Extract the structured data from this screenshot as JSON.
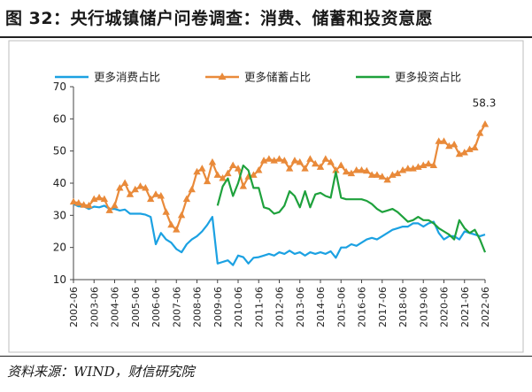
{
  "figure": {
    "title": "图 32：央行城镇储户问卷调查：消费、储蓄和投资意愿",
    "source": "资料来源：WIND，财信研究院"
  },
  "colors": {
    "consumption": "#1BA1E2",
    "savings": "#E98A3A",
    "investment": "#1EA13C"
  },
  "chart_data": {
    "type": "line",
    "title": "",
    "xlabel": "",
    "ylabel": "",
    "ylim": [
      10,
      70
    ],
    "yticks": [
      "10",
      "20",
      "30",
      "40",
      "50",
      "60",
      "70"
    ],
    "xlim": [
      "2002-06",
      "2022-06"
    ],
    "xticks": [
      "2002-06",
      "2003-06",
      "2004-06",
      "2005-06",
      "2006-06",
      "2007-06",
      "2008-06",
      "2009-06",
      "2010-06",
      "2011-06",
      "2012-06",
      "2013-06",
      "2014-06",
      "2015-06",
      "2016-06",
      "2017-06",
      "2018-06",
      "2019-06",
      "2020-06",
      "2021-06",
      "2022-06"
    ],
    "grid": false,
    "legend": "top",
    "annotation": {
      "text": "58.3",
      "x": "2022-06",
      "y": 58.3
    },
    "series": [
      {
        "name": "更多消费占比",
        "color": "#1BA1E2",
        "marker": "none",
        "points": [
          [
            "2002-06",
            33.5
          ],
          [
            "2002-09",
            32.8
          ],
          [
            "2002-12",
            32.8
          ],
          [
            "2003-03",
            32.0
          ],
          [
            "2003-06",
            32.7
          ],
          [
            "2003-09",
            32.5
          ],
          [
            "2003-12",
            33.0
          ],
          [
            "2004-03",
            32.0
          ],
          [
            "2004-06",
            32.0
          ],
          [
            "2004-09",
            31.5
          ],
          [
            "2004-12",
            31.8
          ],
          [
            "2005-03",
            30.5
          ],
          [
            "2005-06",
            30.5
          ],
          [
            "2005-09",
            30.5
          ],
          [
            "2005-12",
            30.2
          ],
          [
            "2006-03",
            29.5
          ],
          [
            "2006-06",
            21.0
          ],
          [
            "2006-09",
            24.5
          ],
          [
            "2006-12",
            22.5
          ],
          [
            "2007-03",
            21.5
          ],
          [
            "2007-06",
            19.5
          ],
          [
            "2007-09",
            18.5
          ],
          [
            "2007-12",
            21.0
          ],
          [
            "2008-03",
            22.5
          ],
          [
            "2008-06",
            23.5
          ],
          [
            "2008-09",
            25.0
          ],
          [
            "2008-12",
            27.0
          ],
          [
            "2009-03",
            29.5
          ],
          [
            "2009-06",
            15.0
          ],
          [
            "2009-09",
            15.5
          ],
          [
            "2009-12",
            16.0
          ],
          [
            "2010-03",
            14.5
          ],
          [
            "2010-06",
            17.5
          ],
          [
            "2010-09",
            17.0
          ],
          [
            "2010-12",
            15.0
          ],
          [
            "2011-03",
            16.8
          ],
          [
            "2011-06",
            17.0
          ],
          [
            "2011-09",
            17.5
          ],
          [
            "2011-12",
            18.0
          ],
          [
            "2012-03",
            17.5
          ],
          [
            "2012-06",
            18.5
          ],
          [
            "2012-09",
            18.0
          ],
          [
            "2012-12",
            19.0
          ],
          [
            "2013-03",
            18.0
          ],
          [
            "2013-06",
            18.5
          ],
          [
            "2013-09",
            17.5
          ],
          [
            "2013-12",
            18.5
          ],
          [
            "2014-03",
            18.0
          ],
          [
            "2014-06",
            18.5
          ],
          [
            "2014-09",
            18.0
          ],
          [
            "2014-12",
            18.8
          ],
          [
            "2015-03",
            16.8
          ],
          [
            "2015-06",
            20.0
          ],
          [
            "2015-09",
            20.0
          ],
          [
            "2015-12",
            21.0
          ],
          [
            "2016-03",
            20.5
          ],
          [
            "2016-06",
            21.5
          ],
          [
            "2016-09",
            22.5
          ],
          [
            "2016-12",
            23.0
          ],
          [
            "2017-03",
            22.5
          ],
          [
            "2017-06",
            23.5
          ],
          [
            "2017-09",
            24.5
          ],
          [
            "2017-12",
            25.5
          ],
          [
            "2018-03",
            26.0
          ],
          [
            "2018-06",
            26.5
          ],
          [
            "2018-09",
            26.5
          ],
          [
            "2018-12",
            27.5
          ],
          [
            "2019-03",
            27.5
          ],
          [
            "2019-06",
            26.5
          ],
          [
            "2019-09",
            27.5
          ],
          [
            "2019-12",
            28.0
          ],
          [
            "2020-03",
            24.5
          ],
          [
            "2020-06",
            22.5
          ],
          [
            "2020-09",
            23.5
          ],
          [
            "2020-12",
            23.5
          ],
          [
            "2021-03",
            22.5
          ],
          [
            "2021-06",
            25.0
          ],
          [
            "2021-09",
            24.5
          ],
          [
            "2021-12",
            24.0
          ],
          [
            "2022-03",
            23.5
          ],
          [
            "2022-06",
            24.0
          ]
        ]
      },
      {
        "name": "更多储蓄占比",
        "color": "#E98A3A",
        "marker": "triangle",
        "points": [
          [
            "2002-06",
            34.2
          ],
          [
            "2002-09",
            33.8
          ],
          [
            "2002-12",
            33.2
          ],
          [
            "2003-03",
            33.0
          ],
          [
            "2003-06",
            35.0
          ],
          [
            "2003-09",
            35.5
          ],
          [
            "2003-12",
            35.0
          ],
          [
            "2004-03",
            31.5
          ],
          [
            "2004-06",
            33.0
          ],
          [
            "2004-09",
            38.5
          ],
          [
            "2004-12",
            40.0
          ],
          [
            "2005-03",
            36.5
          ],
          [
            "2005-06",
            38.0
          ],
          [
            "2005-09",
            39.0
          ],
          [
            "2005-12",
            38.5
          ],
          [
            "2006-03",
            35.0
          ],
          [
            "2006-06",
            36.5
          ],
          [
            "2006-09",
            36.0
          ],
          [
            "2006-12",
            31.0
          ],
          [
            "2007-03",
            27.0
          ],
          [
            "2007-06",
            25.5
          ],
          [
            "2007-09",
            30.0
          ],
          [
            "2007-12",
            35.0
          ],
          [
            "2008-03",
            38.0
          ],
          [
            "2008-06",
            43.5
          ],
          [
            "2008-09",
            44.5
          ],
          [
            "2008-12",
            40.5
          ],
          [
            "2009-03",
            46.5
          ],
          [
            "2009-06",
            42.5
          ],
          [
            "2009-09",
            41.5
          ],
          [
            "2009-12",
            43.0
          ],
          [
            "2010-03",
            45.5
          ],
          [
            "2010-06",
            44.5
          ],
          [
            "2010-09",
            39.0
          ],
          [
            "2010-12",
            42.0
          ],
          [
            "2011-03",
            42.5
          ],
          [
            "2011-06",
            44.0
          ],
          [
            "2011-09",
            47.0
          ],
          [
            "2011-12",
            47.5
          ],
          [
            "2012-03",
            47.0
          ],
          [
            "2012-06",
            47.5
          ],
          [
            "2012-09",
            47.0
          ],
          [
            "2012-12",
            44.5
          ],
          [
            "2013-03",
            47.0
          ],
          [
            "2013-06",
            46.5
          ],
          [
            "2013-09",
            44.5
          ],
          [
            "2013-12",
            47.5
          ],
          [
            "2014-03",
            46.0
          ],
          [
            "2014-06",
            45.0
          ],
          [
            "2014-09",
            47.5
          ],
          [
            "2014-12",
            46.5
          ],
          [
            "2015-03",
            44.0
          ],
          [
            "2015-06",
            45.5
          ],
          [
            "2015-09",
            43.5
          ],
          [
            "2015-12",
            43.0
          ],
          [
            "2016-03",
            44.0
          ],
          [
            "2016-06",
            44.0
          ],
          [
            "2016-09",
            43.8
          ],
          [
            "2016-12",
            42.5
          ],
          [
            "2017-03",
            42.5
          ],
          [
            "2017-06",
            42.0
          ],
          [
            "2017-09",
            41.0
          ],
          [
            "2017-12",
            42.5
          ],
          [
            "2018-03",
            43.0
          ],
          [
            "2018-06",
            44.0
          ],
          [
            "2018-09",
            44.5
          ],
          [
            "2018-12",
            44.5
          ],
          [
            "2019-03",
            45.0
          ],
          [
            "2019-06",
            45.5
          ],
          [
            "2019-09",
            46.0
          ],
          [
            "2019-12",
            45.5
          ],
          [
            "2020-03",
            53.0
          ],
          [
            "2020-06",
            53.0
          ],
          [
            "2020-09",
            51.5
          ],
          [
            "2020-12",
            52.0
          ],
          [
            "2021-03",
            49.0
          ],
          [
            "2021-06",
            49.5
          ],
          [
            "2021-09",
            50.5
          ],
          [
            "2021-12",
            51.0
          ],
          [
            "2022-03",
            55.5
          ],
          [
            "2022-06",
            58.3
          ]
        ]
      },
      {
        "name": "更多投资占比",
        "color": "#1EA13C",
        "marker": "none",
        "points": [
          [
            "2009-06",
            33.0
          ],
          [
            "2009-09",
            39.0
          ],
          [
            "2009-12",
            41.5
          ],
          [
            "2010-03",
            36.0
          ],
          [
            "2010-06",
            40.0
          ],
          [
            "2010-09",
            45.5
          ],
          [
            "2010-12",
            44.0
          ],
          [
            "2011-03",
            38.5
          ],
          [
            "2011-06",
            38.5
          ],
          [
            "2011-09",
            32.5
          ],
          [
            "2011-12",
            32.0
          ],
          [
            "2012-03",
            30.5
          ],
          [
            "2012-06",
            31.0
          ],
          [
            "2012-09",
            33.0
          ],
          [
            "2012-12",
            37.5
          ],
          [
            "2013-03",
            36.0
          ],
          [
            "2013-06",
            32.5
          ],
          [
            "2013-09",
            37.5
          ],
          [
            "2013-12",
            32.5
          ],
          [
            "2014-03",
            36.5
          ],
          [
            "2014-06",
            37.0
          ],
          [
            "2014-09",
            36.0
          ],
          [
            "2014-12",
            35.5
          ],
          [
            "2015-03",
            43.5
          ],
          [
            "2015-06",
            35.5
          ],
          [
            "2015-09",
            35.0
          ],
          [
            "2015-12",
            35.0
          ],
          [
            "2016-03",
            35.0
          ],
          [
            "2016-06",
            35.0
          ],
          [
            "2016-09",
            34.5
          ],
          [
            "2016-12",
            33.5
          ],
          [
            "2017-03",
            32.0
          ],
          [
            "2017-06",
            31.0
          ],
          [
            "2017-09",
            31.5
          ],
          [
            "2017-12",
            32.0
          ],
          [
            "2018-03",
            31.0
          ],
          [
            "2018-06",
            29.5
          ],
          [
            "2018-09",
            28.0
          ],
          [
            "2018-12",
            28.5
          ],
          [
            "2019-03",
            29.5
          ],
          [
            "2019-06",
            28.5
          ],
          [
            "2019-09",
            28.5
          ],
          [
            "2019-12",
            27.5
          ],
          [
            "2020-03",
            26.0
          ],
          [
            "2020-06",
            25.0
          ],
          [
            "2020-09",
            24.0
          ],
          [
            "2020-12",
            22.5
          ],
          [
            "2021-03",
            28.5
          ],
          [
            "2021-06",
            26.0
          ],
          [
            "2021-09",
            24.5
          ],
          [
            "2021-12",
            25.5
          ],
          [
            "2022-03",
            22.5
          ],
          [
            "2022-06",
            18.5
          ]
        ]
      }
    ]
  }
}
